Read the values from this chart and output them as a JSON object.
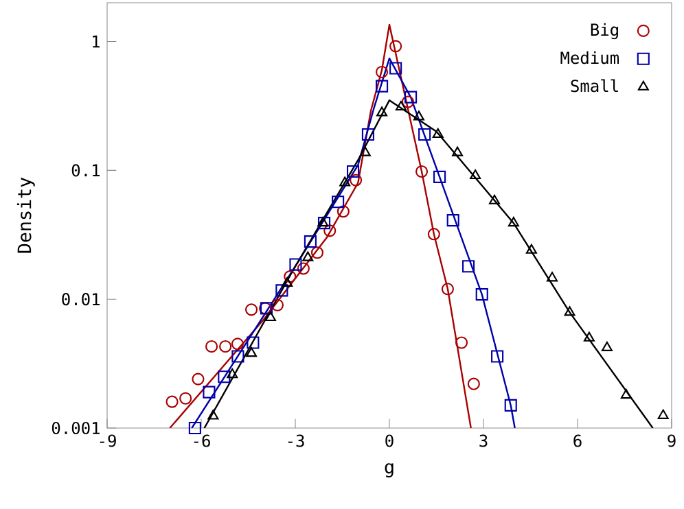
{
  "chart_data": {
    "type": "scatter",
    "xlabel": "g",
    "ylabel": "Density",
    "log": "y",
    "xlim": [
      -9,
      9
    ],
    "ylim": [
      0.001,
      2
    ],
    "xticks": [
      -9,
      -6,
      -3,
      0,
      3,
      6,
      9
    ],
    "yticks": [
      0.001,
      0.01,
      0.1,
      1
    ],
    "legend": "top right",
    "grid": false,
    "series": [
      {
        "name": "Big",
        "marker": "circle",
        "color": "#aa0000",
        "x": [
          -6.93,
          -6.5,
          -6.1,
          -5.67,
          -5.23,
          -4.84,
          -4.4,
          -3.96,
          -3.57,
          -3.17,
          -2.74,
          -2.3,
          -1.9,
          -1.47,
          -1.07,
          -0.24,
          0.2,
          0.59,
          1.03,
          1.42,
          1.86,
          2.3,
          2.69
        ],
        "values": [
          0.0016,
          0.0017,
          0.0024,
          0.0043,
          0.0043,
          0.0045,
          0.0083,
          0.0085,
          0.009,
          0.015,
          0.0173,
          0.023,
          0.034,
          0.048,
          0.084,
          0.58,
          0.92,
          0.34,
          0.098,
          0.032,
          0.012,
          0.0046,
          0.0022
        ]
      },
      {
        "name": "Medium",
        "marker": "square",
        "color": "#0000aa",
        "x": [
          -6.2,
          -5.75,
          -5.27,
          -4.83,
          -4.35,
          -3.92,
          -3.43,
          -2.99,
          -2.52,
          -2.08,
          -1.64,
          -1.16,
          -0.68,
          -0.24,
          0.2,
          0.68,
          1.12,
          1.6,
          2.03,
          2.52,
          2.95,
          3.44,
          3.87
        ],
        "values": [
          0.001,
          0.0019,
          0.0025,
          0.0036,
          0.0046,
          0.0085,
          0.0117,
          0.0186,
          0.028,
          0.039,
          0.057,
          0.098,
          0.19,
          0.45,
          0.62,
          0.37,
          0.19,
          0.089,
          0.041,
          0.018,
          0.0109,
          0.0036,
          0.0015
        ]
      },
      {
        "name": "Small",
        "marker": "triangle",
        "color": "#000000",
        "x": [
          -5.62,
          -5.01,
          -4.4,
          -3.79,
          -3.26,
          -2.6,
          -2.12,
          -1.42,
          -0.77,
          -0.24,
          0.37,
          0.94,
          1.55,
          2.17,
          2.74,
          3.35,
          3.96,
          4.53,
          5.19,
          5.75,
          6.37,
          6.94,
          7.55,
          8.73
        ],
        "values": [
          0.00124,
          0.0026,
          0.0038,
          0.0072,
          0.0133,
          0.021,
          0.039,
          0.08,
          0.137,
          0.28,
          0.31,
          0.26,
          0.19,
          0.137,
          0.091,
          0.058,
          0.039,
          0.024,
          0.0146,
          0.0079,
          0.005,
          0.0042,
          0.0018,
          0.00125
        ]
      },
      {
        "type": "line",
        "marker": "none",
        "color": "#aa0000",
        "x": [
          -7.0,
          -4,
          -2,
          -1,
          -0.59,
          -0.24,
          0,
          1.03,
          1.42,
          1.86,
          2.6
        ],
        "values": [
          0.001,
          0.007,
          0.03,
          0.08,
          0.29,
          0.6,
          1.35,
          0.098,
          0.032,
          0.012,
          0.001
        ]
      },
      {
        "type": "line",
        "marker": "none",
        "color": "#0000aa",
        "x": [
          -6.3,
          -3,
          -1,
          -0.5,
          0,
          0.68,
          1.6,
          2.95,
          3.87,
          4.0
        ],
        "values": [
          0.001,
          0.018,
          0.11,
          0.3,
          0.74,
          0.37,
          0.089,
          0.0109,
          0.0015,
          0.001
        ]
      },
      {
        "type": "line",
        "marker": "none",
        "color": "#000000",
        "x": [
          -5.9,
          -3,
          -1,
          0,
          1.5,
          3.96,
          5.75,
          8.4
        ],
        "values": [
          0.001,
          0.018,
          0.12,
          0.35,
          0.2,
          0.039,
          0.0079,
          0.001
        ]
      }
    ]
  }
}
